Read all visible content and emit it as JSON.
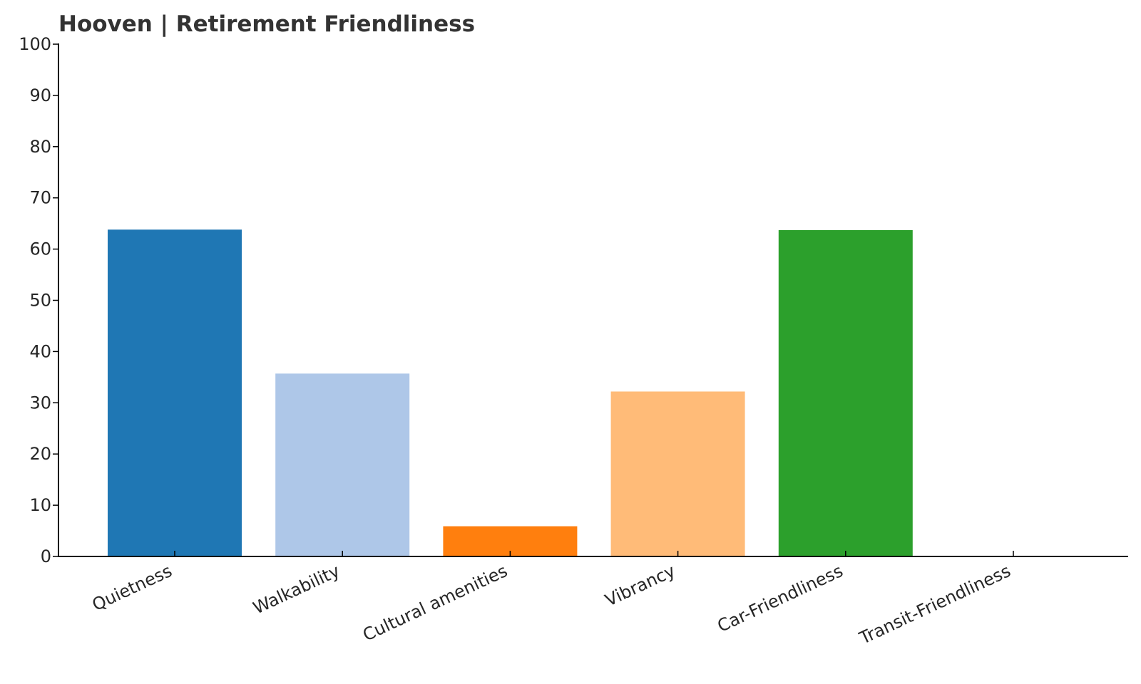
{
  "chart_data": {
    "type": "bar",
    "title": "Hooven | Retirement Friendliness",
    "xlabel": "",
    "ylabel": "",
    "categories": [
      "Quietness",
      "Walkability",
      "Cultural amenities",
      "Vibrancy",
      "Car-Friendliness",
      "Transit-Friendliness"
    ],
    "values": [
      63.8,
      35.7,
      5.9,
      32.2,
      63.7,
      0
    ],
    "colors": [
      "#1f77b4",
      "#aec7e8",
      "#ff7f0e",
      "#ffbb78",
      "#2ca02c",
      "#98df8a"
    ],
    "ylim": [
      0,
      100
    ],
    "yticks": [
      "0",
      "10",
      "20",
      "30",
      "40",
      "50",
      "60",
      "70",
      "80",
      "90",
      "100"
    ],
    "grid": false,
    "legend": "none"
  }
}
